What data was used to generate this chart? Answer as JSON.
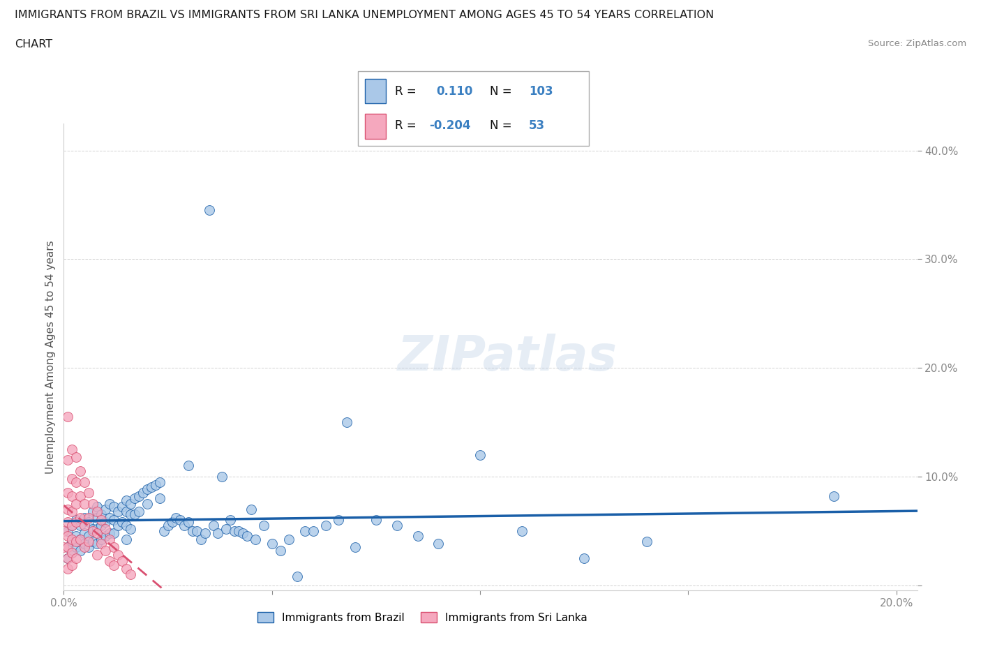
{
  "title_line1": "IMMIGRANTS FROM BRAZIL VS IMMIGRANTS FROM SRI LANKA UNEMPLOYMENT AMONG AGES 45 TO 54 YEARS CORRELATION",
  "title_line2": "CHART",
  "source": "Source: ZipAtlas.com",
  "ylabel": "Unemployment Among Ages 45 to 54 years",
  "xlim": [
    0.0,
    0.205
  ],
  "ylim": [
    -0.005,
    0.425
  ],
  "brazil_color": "#aac8e8",
  "srilanka_color": "#f5a8be",
  "brazil_line_color": "#1a5fa8",
  "srilanka_line_color": "#d94f70",
  "brazil_points_x": [
    0.001,
    0.001,
    0.001,
    0.002,
    0.002,
    0.002,
    0.003,
    0.003,
    0.003,
    0.004,
    0.004,
    0.004,
    0.005,
    0.005,
    0.005,
    0.006,
    0.006,
    0.006,
    0.007,
    0.007,
    0.007,
    0.008,
    0.008,
    0.008,
    0.008,
    0.009,
    0.009,
    0.009,
    0.01,
    0.01,
    0.01,
    0.011,
    0.011,
    0.011,
    0.012,
    0.012,
    0.012,
    0.013,
    0.013,
    0.014,
    0.014,
    0.015,
    0.015,
    0.015,
    0.015,
    0.016,
    0.016,
    0.016,
    0.017,
    0.017,
    0.018,
    0.018,
    0.019,
    0.02,
    0.02,
    0.021,
    0.022,
    0.023,
    0.023,
    0.024,
    0.025,
    0.026,
    0.027,
    0.028,
    0.029,
    0.03,
    0.03,
    0.031,
    0.032,
    0.033,
    0.034,
    0.035,
    0.036,
    0.037,
    0.038,
    0.039,
    0.04,
    0.041,
    0.042,
    0.043,
    0.044,
    0.045,
    0.046,
    0.048,
    0.05,
    0.052,
    0.054,
    0.056,
    0.058,
    0.06,
    0.063,
    0.066,
    0.068,
    0.07,
    0.075,
    0.08,
    0.085,
    0.09,
    0.1,
    0.11,
    0.125,
    0.14,
    0.185
  ],
  "brazil_points_y": [
    0.05,
    0.035,
    0.025,
    0.055,
    0.04,
    0.03,
    0.06,
    0.045,
    0.035,
    0.055,
    0.042,
    0.032,
    0.062,
    0.048,
    0.038,
    0.058,
    0.045,
    0.035,
    0.068,
    0.052,
    0.04,
    0.072,
    0.062,
    0.052,
    0.038,
    0.065,
    0.055,
    0.042,
    0.07,
    0.058,
    0.045,
    0.075,
    0.062,
    0.048,
    0.072,
    0.06,
    0.048,
    0.068,
    0.055,
    0.072,
    0.058,
    0.078,
    0.068,
    0.055,
    0.042,
    0.075,
    0.065,
    0.052,
    0.08,
    0.065,
    0.082,
    0.068,
    0.085,
    0.088,
    0.075,
    0.09,
    0.092,
    0.095,
    0.08,
    0.05,
    0.055,
    0.058,
    0.062,
    0.06,
    0.055,
    0.058,
    0.11,
    0.05,
    0.05,
    0.042,
    0.048,
    0.345,
    0.055,
    0.048,
    0.1,
    0.052,
    0.06,
    0.05,
    0.05,
    0.048,
    0.045,
    0.07,
    0.042,
    0.055,
    0.038,
    0.032,
    0.042,
    0.008,
    0.05,
    0.05,
    0.055,
    0.06,
    0.15,
    0.035,
    0.06,
    0.055,
    0.045,
    0.038,
    0.12,
    0.05,
    0.025,
    0.04,
    0.082
  ],
  "srilanka_points_x": [
    0.0,
    0.0,
    0.001,
    0.001,
    0.001,
    0.001,
    0.001,
    0.001,
    0.001,
    0.001,
    0.001,
    0.002,
    0.002,
    0.002,
    0.002,
    0.002,
    0.002,
    0.002,
    0.002,
    0.003,
    0.003,
    0.003,
    0.003,
    0.003,
    0.003,
    0.004,
    0.004,
    0.004,
    0.004,
    0.005,
    0.005,
    0.005,
    0.005,
    0.006,
    0.006,
    0.006,
    0.007,
    0.007,
    0.008,
    0.008,
    0.008,
    0.009,
    0.009,
    0.01,
    0.01,
    0.011,
    0.011,
    0.012,
    0.012,
    0.013,
    0.014,
    0.015,
    0.016
  ],
  "srilanka_points_y": [
    0.05,
    0.035,
    0.155,
    0.115,
    0.085,
    0.07,
    0.058,
    0.045,
    0.035,
    0.025,
    0.015,
    0.125,
    0.098,
    0.082,
    0.068,
    0.055,
    0.042,
    0.03,
    0.018,
    0.118,
    0.095,
    0.075,
    0.058,
    0.04,
    0.025,
    0.105,
    0.082,
    0.062,
    0.042,
    0.095,
    0.075,
    0.055,
    0.035,
    0.085,
    0.062,
    0.04,
    0.075,
    0.05,
    0.068,
    0.048,
    0.028,
    0.06,
    0.038,
    0.052,
    0.032,
    0.042,
    0.022,
    0.035,
    0.018,
    0.028,
    0.022,
    0.015,
    0.01
  ]
}
